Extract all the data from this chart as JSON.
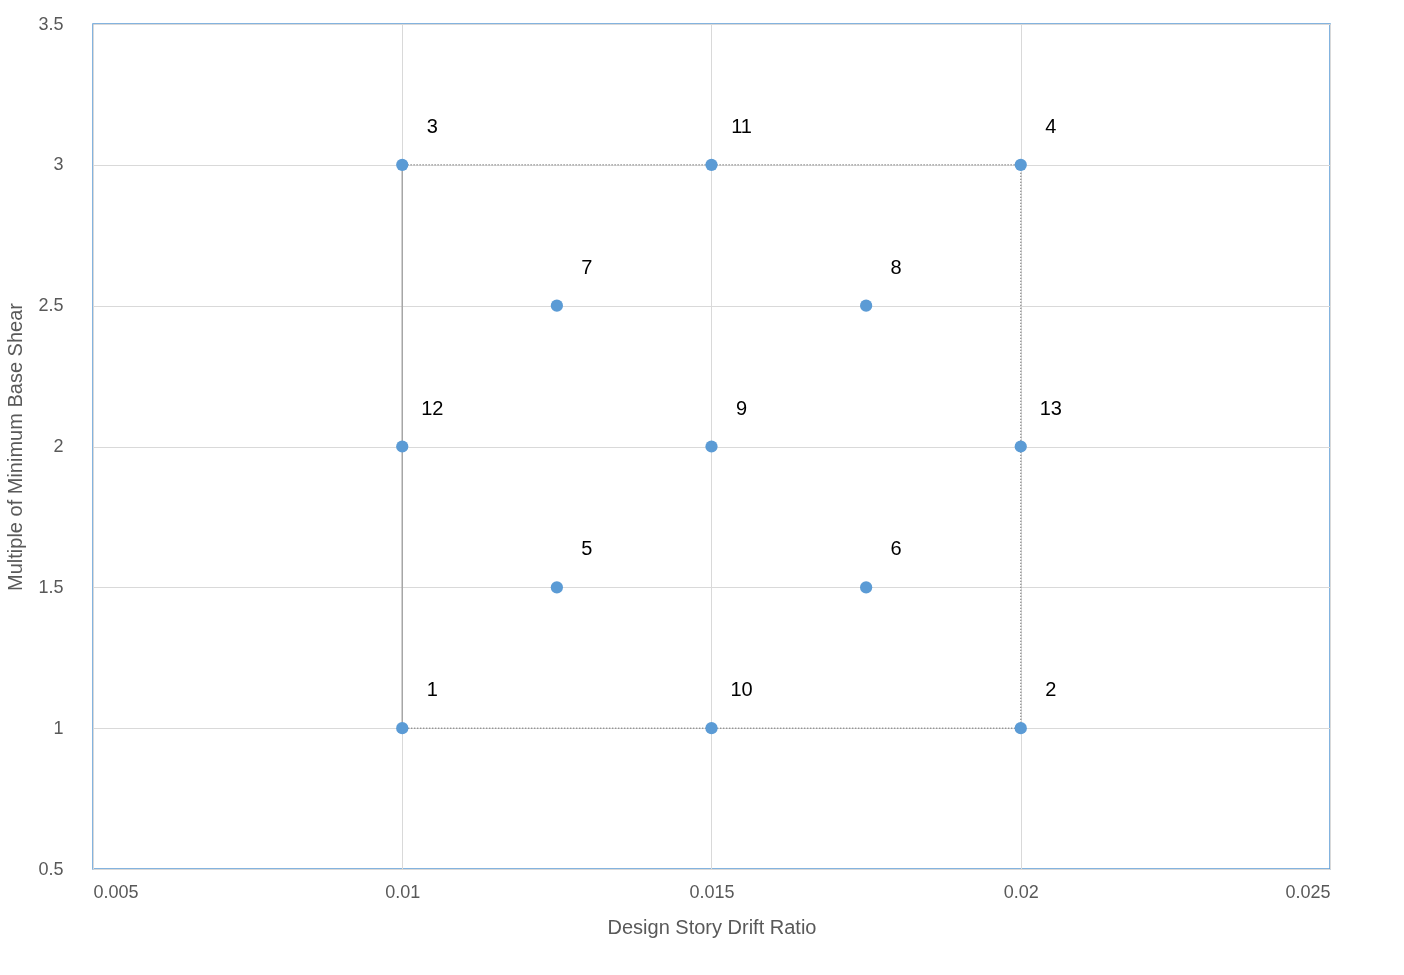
{
  "chart_data": {
    "type": "scatter",
    "xlabel": "Design Story Drift Ratio",
    "ylabel": "Multiple of Minimum Base Shear",
    "xlim": [
      0.005,
      0.025
    ],
    "xticks": [
      0.005,
      0.01,
      0.015,
      0.02,
      0.025
    ],
    "ylim": [
      0.5,
      3.5
    ],
    "yticks": [
      0.5,
      1,
      1.5,
      2,
      2.5,
      3,
      3.5
    ],
    "grid": true,
    "marker": "circle",
    "series": [
      {
        "type": "line",
        "color": "#a6a6a6",
        "line_style": "solid",
        "marker": "none",
        "x": [
          0.01,
          0.01
        ],
        "values": [
          1,
          3
        ]
      },
      {
        "type": "line",
        "color": "#7f7f7f",
        "line_style": "dotted",
        "marker": "none",
        "x": [
          0.01,
          0.02,
          0.02,
          0.01
        ],
        "values": [
          1,
          1,
          3,
          3
        ]
      },
      {
        "color": "#5b9bd5",
        "x": [
          0.01,
          0.02,
          0.01,
          0.02,
          0.0125,
          0.0175,
          0.0125,
          0.0175,
          0.015,
          0.015,
          0.015,
          0.01,
          0.02
        ],
        "values": [
          1,
          1,
          3,
          3,
          1.5,
          1.5,
          2.5,
          2.5,
          2,
          1,
          3,
          2,
          2
        ]
      }
    ],
    "annotations": [
      {
        "text": "1",
        "x": 0.01,
        "y": 1
      },
      {
        "text": "2",
        "x": 0.02,
        "y": 1
      },
      {
        "text": "3",
        "x": 0.01,
        "y": 3
      },
      {
        "text": "4",
        "x": 0.02,
        "y": 3
      },
      {
        "text": "5",
        "x": 0.0125,
        "y": 1.5
      },
      {
        "text": "6",
        "x": 0.0175,
        "y": 1.5
      },
      {
        "text": "7",
        "x": 0.0125,
        "y": 2.5
      },
      {
        "text": "8",
        "x": 0.0175,
        "y": 2.5
      },
      {
        "text": "9",
        "x": 0.015,
        "y": 2
      },
      {
        "text": "10",
        "x": 0.015,
        "y": 1
      },
      {
        "text": "11",
        "x": 0.015,
        "y": 3
      },
      {
        "text": "12",
        "x": 0.01,
        "y": 2
      },
      {
        "text": "13",
        "x": 0.02,
        "y": 2
      }
    ]
  }
}
